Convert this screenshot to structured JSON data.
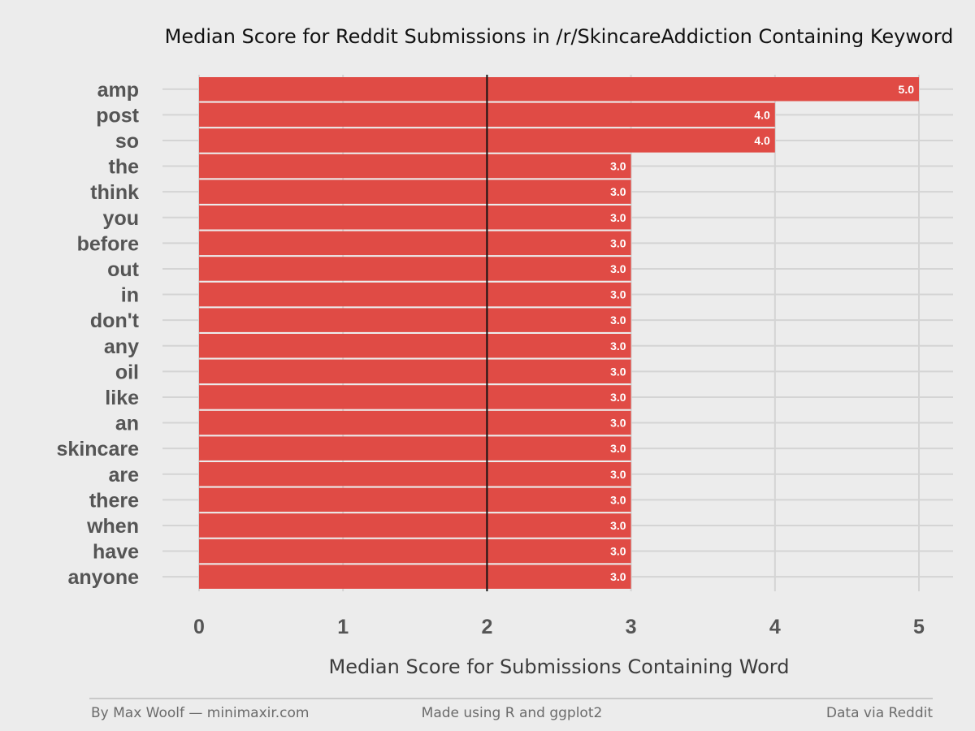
{
  "chart_data": {
    "type": "bar",
    "orientation": "horizontal",
    "title": "Median Score for Reddit Submissions in /r/SkincareAddiction Containing Keyword",
    "xlabel": "Median Score for Submissions Containing Word",
    "ylabel": "",
    "categories": [
      "amp",
      "post",
      "so",
      "the",
      "think",
      "you",
      "before",
      "out",
      "in",
      "don't",
      "any",
      "oil",
      "like",
      "an",
      "skincare",
      "are",
      "there",
      "when",
      "have",
      "anyone"
    ],
    "values": [
      5.0,
      4.0,
      4.0,
      3.0,
      3.0,
      3.0,
      3.0,
      3.0,
      3.0,
      3.0,
      3.0,
      3.0,
      3.0,
      3.0,
      3.0,
      3.0,
      3.0,
      3.0,
      3.0,
      3.0
    ],
    "data_labels": [
      "5.0",
      "4.0",
      "4.0",
      "3.0",
      "3.0",
      "3.0",
      "3.0",
      "3.0",
      "3.0",
      "3.0",
      "3.0",
      "3.0",
      "3.0",
      "3.0",
      "3.0",
      "3.0",
      "3.0",
      "3.0",
      "3.0",
      "3.0"
    ],
    "xlim": [
      0,
      5
    ],
    "x_ticks": [
      "0",
      "1",
      "2",
      "3",
      "4",
      "5"
    ],
    "reference_line": 2,
    "grid": true,
    "bar_color": "#e04b45",
    "background_color": "#ececec",
    "grid_color": "#d4d4d4"
  },
  "footer": {
    "left": "By Max Woolf — minimaxir.com",
    "center": "Made using R and ggplot2",
    "right": "Data via Reddit"
  }
}
